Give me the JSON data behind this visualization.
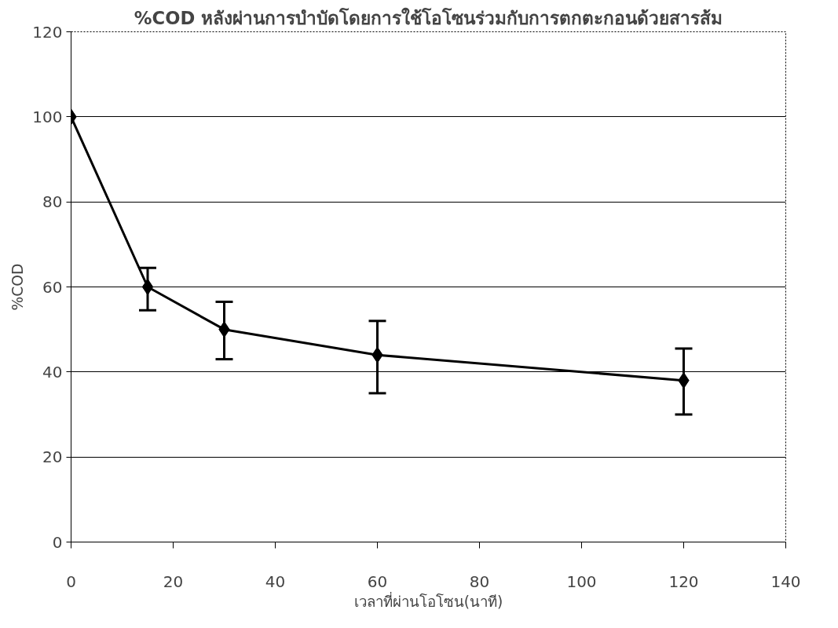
{
  "chart_data": {
    "type": "line",
    "title": "%COD หลังผ่านการบำบัดโดยการใช้โอโซนร่วมกับการตกตะกอนด้วยสารส้ม",
    "xlabel": "เวลาที่ผ่านโอโซน(นาที)",
    "ylabel": "%COD",
    "x": [
      0,
      15,
      30,
      60,
      120
    ],
    "series": [
      {
        "color": "#000000",
        "values": [
          100,
          60,
          50,
          44,
          38
        ],
        "errors": [
          null,
          [
            54.5,
            64.5
          ],
          [
            43,
            56.5
          ],
          [
            35,
            52
          ],
          [
            30,
            45.5
          ]
        ]
      }
    ],
    "xlim": [
      0,
      140
    ],
    "xticks": [
      0,
      20,
      40,
      60,
      80,
      100,
      120,
      140
    ],
    "ylim": [
      0,
      120
    ],
    "yticks": [
      0,
      20,
      40,
      60,
      80,
      100,
      120
    ],
    "grid": "y",
    "marker": "diamond",
    "line_style": "solid"
  }
}
